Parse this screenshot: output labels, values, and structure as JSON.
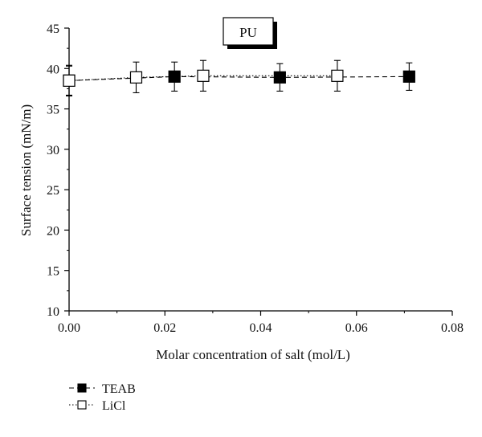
{
  "chart_data": {
    "type": "scatter",
    "inset_label": "PU",
    "xlabel": "Molar concentration of salt (mol/L)",
    "ylabel": "Surface tension (mN/m)",
    "xlim": [
      0.0,
      0.08
    ],
    "ylim": [
      10,
      45
    ],
    "x_ticks": [
      0.0,
      0.02,
      0.04,
      0.06,
      0.08
    ],
    "x_tick_labels": [
      "0.00",
      "0.02",
      "0.04",
      "0.06",
      "0.08"
    ],
    "y_ticks": [
      10,
      15,
      20,
      25,
      30,
      35,
      40,
      45
    ],
    "y_tick_labels": [
      "10",
      "15",
      "20",
      "25",
      "30",
      "35",
      "40",
      "45"
    ],
    "grid": false,
    "legend_position": "bottom-left",
    "series": [
      {
        "name": "TEAB",
        "marker": "filled-square",
        "line_style": "dashed",
        "color": "#000000",
        "x": [
          0.0,
          0.022,
          0.044,
          0.071
        ],
        "y": [
          38.5,
          39.0,
          38.9,
          39.0
        ],
        "error": [
          1.8,
          1.8,
          1.7,
          1.7
        ]
      },
      {
        "name": "LiCl",
        "marker": "open-square",
        "line_style": "dotted",
        "color": "#000000",
        "x": [
          0.0,
          0.014,
          0.028,
          0.056
        ],
        "y": [
          38.5,
          38.9,
          39.1,
          39.1
        ],
        "error": [
          1.9,
          1.9,
          1.9,
          1.9
        ]
      }
    ]
  }
}
